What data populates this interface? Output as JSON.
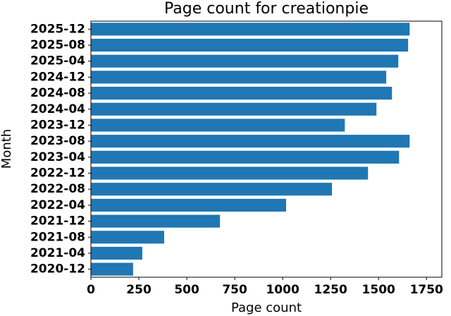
{
  "chart_data": {
    "type": "barh",
    "title": "Page count for creationpie",
    "x_label": "Page count",
    "y_label": "Month",
    "categories": [
      "2020-12",
      "2021-04",
      "2021-08",
      "2021-12",
      "2022-04",
      "2022-08",
      "2022-12",
      "2023-04",
      "2023-08",
      "2023-12",
      "2024-04",
      "2024-08",
      "2024-12",
      "2025-04",
      "2025-08",
      "2025-12"
    ],
    "values": [
      220,
      268,
      382,
      673,
      1018,
      1257,
      1445,
      1607,
      1662,
      1324,
      1489,
      1570,
      1540,
      1603,
      1654,
      1662
    ],
    "color": "#1f77b4",
    "xlim": [
      0,
      1830
    ],
    "xticks": [
      0,
      250,
      500,
      750,
      1000,
      1250,
      1500,
      1750
    ]
  }
}
